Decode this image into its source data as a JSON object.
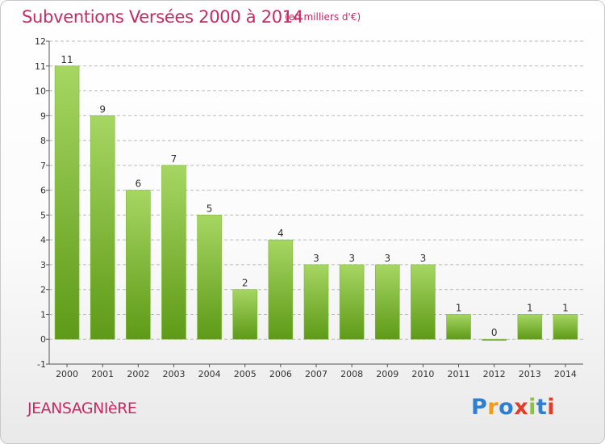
{
  "header": {
    "title": "Subventions Versées 2000 à 2014",
    "units_note": "(en milliers d'€)"
  },
  "footer": {
    "place_name": "JEANSAGNIèRE",
    "logo_text": "Proxiti",
    "logo_colors": [
      "#2f7fd0",
      "#f39a18",
      "#2f7fd0",
      "#e23c2a",
      "#8bc33a",
      "#2f7fd0",
      "#e23c2a"
    ]
  },
  "colors": {
    "bar_top": "#a6d663",
    "bar_bottom": "#5e9a17",
    "axis": "#555555",
    "grid": "#b9b9b9",
    "title": "#c72a63",
    "label": "#333333"
  },
  "chart_data": {
    "type": "bar",
    "title": "Subventions Versées 2000 à 2014",
    "xlabel": "",
    "ylabel": "",
    "categories": [
      "2000",
      "2001",
      "2002",
      "2003",
      "2004",
      "2005",
      "2006",
      "2007",
      "2008",
      "2009",
      "2010",
      "2011",
      "2012",
      "2013",
      "2014"
    ],
    "values": [
      11,
      9,
      6,
      7,
      5,
      2,
      4,
      3,
      3,
      3,
      3,
      1,
      0,
      1,
      1
    ],
    "data_labels": [
      "11",
      "9",
      "6",
      "7",
      "5",
      "2",
      "4",
      "3",
      "3",
      "3",
      "3",
      "1",
      "0",
      "1",
      "1"
    ],
    "ylim": [
      -1,
      12
    ],
    "yticks": [
      -1,
      0,
      1,
      2,
      3,
      4,
      5,
      6,
      7,
      8,
      9,
      10,
      11,
      12
    ],
    "grid": "dashed horizontal",
    "legend": "none"
  }
}
